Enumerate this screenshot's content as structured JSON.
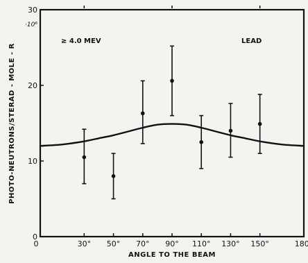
{
  "chart_data": {
    "type": "scatter",
    "title": "",
    "xlabel": "ANGLE TO THE BEAM",
    "ylabel": "PHOTO-NEUTRONS/STERAD - MOLE - R",
    "ylabel_exponent": "·10⁶",
    "xlim": [
      0,
      180
    ],
    "ylim": [
      0,
      30
    ],
    "x_ticks": [
      0,
      30,
      50,
      70,
      90,
      110,
      130,
      150,
      180
    ],
    "x_tick_labels": [
      "0",
      "30°",
      "50°",
      "70°",
      "90°",
      "110°",
      "130°",
      "150°",
      "180°"
    ],
    "y_ticks": [
      0,
      10,
      20,
      30
    ],
    "y_tick_labels": [
      "0",
      "10",
      "20",
      "30"
    ],
    "top_ticks": [
      30,
      90,
      150
    ],
    "annotations": [
      "≥ 4.0 MEV",
      "LEAD"
    ],
    "series": [
      {
        "kind": "points_with_error_bars",
        "x": [
          30,
          50,
          70,
          90,
          110,
          130,
          150
        ],
        "y": [
          10.5,
          8,
          16.3,
          20.6,
          12.5,
          14,
          14.9
        ],
        "y_low": [
          7,
          5,
          12.3,
          16,
          9,
          10.5,
          11
        ],
        "y_high": [
          14.2,
          11,
          20.6,
          25.2,
          16,
          17.6,
          18.8
        ]
      },
      {
        "kind": "curve",
        "x": [
          0,
          10,
          20,
          30,
          40,
          50,
          60,
          70,
          80,
          90,
          100,
          110,
          120,
          130,
          140,
          150,
          160,
          170,
          180
        ],
        "y": [
          12,
          12.1,
          12.3,
          12.6,
          13,
          13.4,
          13.9,
          14.4,
          14.8,
          14.9,
          14.8,
          14.4,
          13.9,
          13.4,
          13,
          12.6,
          12.3,
          12.1,
          12
        ]
      }
    ]
  }
}
